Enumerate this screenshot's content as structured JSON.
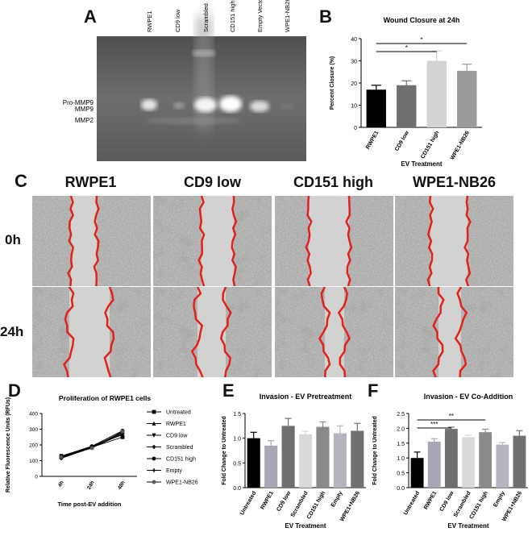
{
  "panels": {
    "a": {
      "letter": "A"
    },
    "b": {
      "letter": "B"
    },
    "c": {
      "letter": "C"
    },
    "d": {
      "letter": "D"
    },
    "e": {
      "letter": "E"
    },
    "f": {
      "letter": "F"
    }
  },
  "gel": {
    "lanes": [
      "RWPE1",
      "CD9 low",
      "Scrambled",
      "CD151 high",
      "Empty Vector",
      "WPE1-NB26"
    ],
    "band_labels": [
      "Pro-MMP9",
      "MMP9",
      "MMP2"
    ],
    "colors": {
      "background": "#6e6e6e",
      "band": "#f2f2f2"
    }
  },
  "wound": {
    "columns": [
      "RWPE1",
      "CD9 low",
      "CD151 high",
      "WPE1-NB26"
    ],
    "rows": [
      "0h",
      "24h"
    ],
    "colors": {
      "wound_edge": "#e0221b"
    }
  },
  "chart_data": [
    {
      "panel": "B",
      "type": "bar",
      "title": "Wound Closure at 24h",
      "xlabel": "EV Treatment",
      "ylabel": "Percent Closure (%)",
      "categories": [
        "RWPE1",
        "CD9 low",
        "CD151 high",
        "WPE1-NB26"
      ],
      "values": [
        17,
        19,
        30,
        25.5
      ],
      "errors": [
        2,
        2,
        4.5,
        3
      ],
      "colors": [
        "#000000",
        "#6f6f6f",
        "#d3d3d3",
        "#9a9a9a"
      ],
      "ylim": [
        0,
        40
      ],
      "yticks": [
        "0",
        "10",
        "20",
        "30",
        "40"
      ],
      "significance": [
        {
          "from": 0,
          "to": 2,
          "label": "*"
        },
        {
          "from": 0,
          "to": 3,
          "label": "*"
        }
      ]
    },
    {
      "panel": "D",
      "type": "line",
      "title": "Proliferation of RWPE1 cells",
      "xlabel": "Time post-EV addition",
      "ylabel": "Relative Fluorescence Units (RFUs)",
      "categories": [
        "4h",
        "24h",
        "48h"
      ],
      "ylim": [
        0,
        400
      ],
      "yticks": [
        "0",
        "100",
        "200",
        "300",
        "400"
      ],
      "series": [
        {
          "name": "Untreated",
          "values": [
            125,
            185,
            250
          ],
          "marker": "square"
        },
        {
          "name": "RWPE1",
          "values": [
            120,
            190,
            265
          ],
          "marker": "triangle-up"
        },
        {
          "name": "CD9 low",
          "values": [
            130,
            188,
            280
          ],
          "marker": "triangle-down"
        },
        {
          "name": "Scrambled",
          "values": [
            115,
            182,
            270
          ],
          "marker": "diamond"
        },
        {
          "name": "CD151 high",
          "values": [
            128,
            192,
            290
          ],
          "marker": "circle"
        },
        {
          "name": "Empty",
          "values": [
            118,
            186,
            275
          ],
          "marker": "plus"
        },
        {
          "name": "WPE1-NB26",
          "values": [
            122,
            180,
            285
          ],
          "marker": "hex"
        }
      ]
    },
    {
      "panel": "E",
      "type": "bar",
      "title": "Invasion - EV Pretreatment",
      "xlabel": "EV Treatment",
      "ylabel": "Fold Change to Untreated",
      "categories": [
        "Untreated",
        "RWPE1",
        "CD9 low",
        "Scrambled",
        "CD151 high",
        "Empty",
        "WPE1+NB26"
      ],
      "values": [
        1.0,
        0.85,
        1.25,
        1.08,
        1.23,
        1.1,
        1.15
      ],
      "errors": [
        0.12,
        0.1,
        0.15,
        0.06,
        0.1,
        0.15,
        0.15
      ],
      "colors": [
        "#000000",
        "#a7a7b5",
        "#6f6f6f",
        "#d9d9d9",
        "#8a8a8a",
        "#b5b5c2",
        "#707070"
      ],
      "ylim": [
        0,
        1.5
      ],
      "yticks": [
        "0.0",
        "0.5",
        "1.0",
        "1.5"
      ]
    },
    {
      "panel": "F",
      "type": "bar",
      "title": "Invasion - EV Co-Addition",
      "xlabel": "EV Treatment",
      "ylabel": "Fold Change to Untreated",
      "categories": [
        "Untreated",
        "RWPE1",
        "CD9 low",
        "Scrambled",
        "CD151 high",
        "Empty",
        "WPE1+NB26"
      ],
      "values": [
        1.0,
        1.55,
        1.98,
        1.7,
        1.87,
        1.45,
        1.75
      ],
      "errors": [
        0.2,
        0.1,
        0.06,
        0.07,
        0.1,
        0.07,
        0.17
      ],
      "colors": [
        "#000000",
        "#a7a7b5",
        "#6f6f6f",
        "#d9d9d9",
        "#8a8a8a",
        "#b5b5c2",
        "#707070"
      ],
      "ylim": [
        0,
        2.5
      ],
      "yticks": [
        "0.0",
        "0.5",
        "1.0",
        "1.5",
        "2.0",
        "2.5"
      ],
      "significance": [
        {
          "from": 0,
          "to": 2,
          "label": "***"
        },
        {
          "from": 0,
          "to": 4,
          "label": "**"
        }
      ]
    }
  ]
}
